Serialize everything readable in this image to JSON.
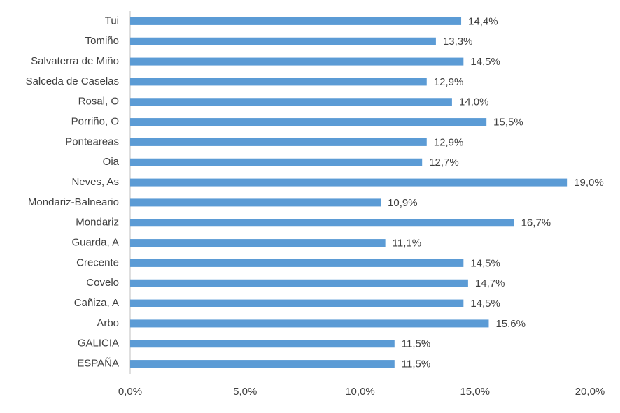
{
  "chart_data": {
    "type": "bar",
    "orientation": "horizontal",
    "categories": [
      "Tui",
      "Tomiño",
      "Salvaterra de Miño",
      "Salceda de Caselas",
      "Rosal, O",
      "Porriño, O",
      "Ponteareas",
      "Oia",
      "Neves, As",
      "Mondariz-Balneario",
      "Mondariz",
      "Guarda, A",
      "Crecente",
      "Covelo",
      "Cañiza, A",
      "Arbo",
      "GALICIA",
      "ESPAÑA"
    ],
    "values": [
      14.4,
      13.3,
      14.5,
      12.9,
      14.0,
      15.5,
      12.9,
      12.7,
      19.0,
      10.9,
      16.7,
      11.1,
      14.5,
      14.7,
      14.5,
      15.6,
      11.5,
      11.5
    ],
    "value_labels": [
      "14,4%",
      "13,3%",
      "14,5%",
      "12,9%",
      "14,0%",
      "15,5%",
      "12,9%",
      "12,7%",
      "19,0%",
      "10,9%",
      "16,7%",
      "11,1%",
      "14,5%",
      "14,7%",
      "14,5%",
      "15,6%",
      "11,5%",
      "11,5%"
    ],
    "color": "#5b9bd5",
    "xlim": [
      0,
      20
    ],
    "xticks": [
      {
        "value": 0,
        "label": "0,0%"
      },
      {
        "value": 5,
        "label": "5,0%"
      },
      {
        "value": 10,
        "label": "10,0%"
      },
      {
        "value": 15,
        "label": "15,0%"
      },
      {
        "value": 20,
        "label": "20,0%"
      }
    ],
    "grid": false
  }
}
